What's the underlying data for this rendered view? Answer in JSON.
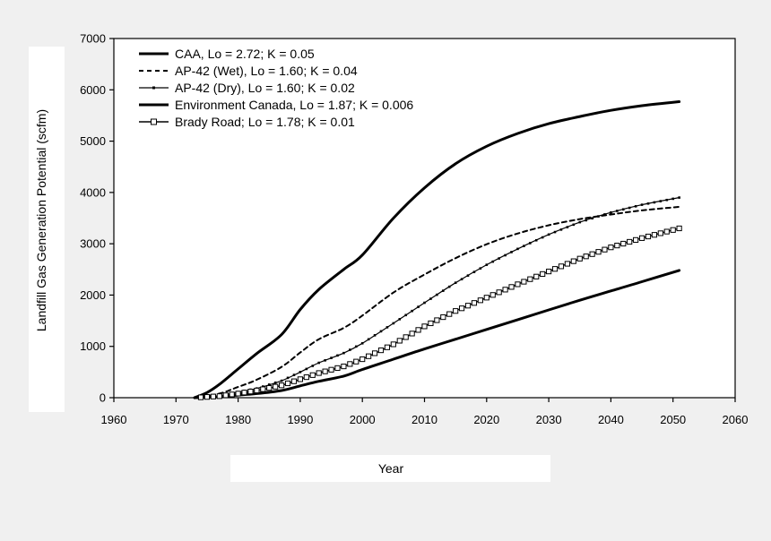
{
  "chart_data": {
    "type": "line",
    "title": "",
    "xlabel": "Year",
    "ylabel": "Landfill Gas Generation Potential (scfm)",
    "xlim": [
      1960,
      2060
    ],
    "ylim": [
      0,
      7000
    ],
    "xticks": [
      1960,
      1970,
      1980,
      1990,
      2000,
      2010,
      2020,
      2030,
      2040,
      2050,
      2060
    ],
    "yticks": [
      0,
      1000,
      2000,
      3000,
      4000,
      5000,
      6000,
      7000
    ],
    "grid": false,
    "legend_position": "top-left",
    "series": [
      {
        "name": "CAA, Lo = 2.72; K = 0.05",
        "style": "thick-solid",
        "x": [
          1973,
          1975,
          1977,
          1980,
          1983,
          1987,
          1990,
          1993,
          1997,
          2000,
          2005,
          2010,
          2015,
          2020,
          2025,
          2030,
          2035,
          2040,
          2045,
          2051
        ],
        "values": [
          0,
          100,
          260,
          560,
          860,
          1230,
          1720,
          2110,
          2500,
          2780,
          3500,
          4090,
          4560,
          4900,
          5150,
          5340,
          5480,
          5600,
          5690,
          5770
        ]
      },
      {
        "name": "AP-42 (Wet), Lo = 1.60; K = 0.04",
        "style": "dashed",
        "x": [
          1973,
          1977,
          1980,
          1983,
          1987,
          1990,
          1993,
          1997,
          2000,
          2005,
          2010,
          2015,
          2020,
          2025,
          2030,
          2035,
          2040,
          2045,
          2051
        ],
        "values": [
          0,
          80,
          210,
          350,
          600,
          880,
          1140,
          1360,
          1600,
          2050,
          2400,
          2720,
          2990,
          3200,
          3360,
          3480,
          3570,
          3650,
          3720
        ]
      },
      {
        "name": "AP-42 (Dry), Lo = 1.60; K = 0.02",
        "style": "thin-marker",
        "x": [
          1973,
          1977,
          1980,
          1983,
          1987,
          1990,
          1993,
          1997,
          2000,
          2005,
          2010,
          2015,
          2020,
          2025,
          2030,
          2035,
          2040,
          2045,
          2051
        ],
        "values": [
          0,
          40,
          110,
          180,
          330,
          500,
          680,
          870,
          1060,
          1450,
          1850,
          2240,
          2590,
          2900,
          3180,
          3420,
          3610,
          3760,
          3900
        ]
      },
      {
        "name": "Environment Canada, Lo = 1.87; K = 0.006",
        "style": "thick-solid",
        "x": [
          1973,
          1977,
          1980,
          1983,
          1987,
          1990,
          1993,
          1997,
          2000,
          2005,
          2010,
          2015,
          2020,
          2025,
          2030,
          2035,
          2040,
          2045,
          2051
        ],
        "values": [
          0,
          20,
          50,
          80,
          140,
          230,
          320,
          420,
          550,
          750,
          950,
          1140,
          1330,
          1520,
          1710,
          1900,
          2080,
          2260,
          2480
        ]
      },
      {
        "name": "Brady Road; Lo = 1.78; K = 0.01",
        "style": "square-marker",
        "x": [
          1973,
          1977,
          1980,
          1983,
          1987,
          1990,
          1993,
          1997,
          2000,
          2005,
          2010,
          2015,
          2020,
          2025,
          2030,
          2035,
          2040,
          2045,
          2051
        ],
        "values": [
          0,
          30,
          80,
          140,
          240,
          360,
          480,
          610,
          750,
          1040,
          1390,
          1690,
          1950,
          2210,
          2460,
          2710,
          2930,
          3110,
          3300
        ]
      }
    ]
  }
}
